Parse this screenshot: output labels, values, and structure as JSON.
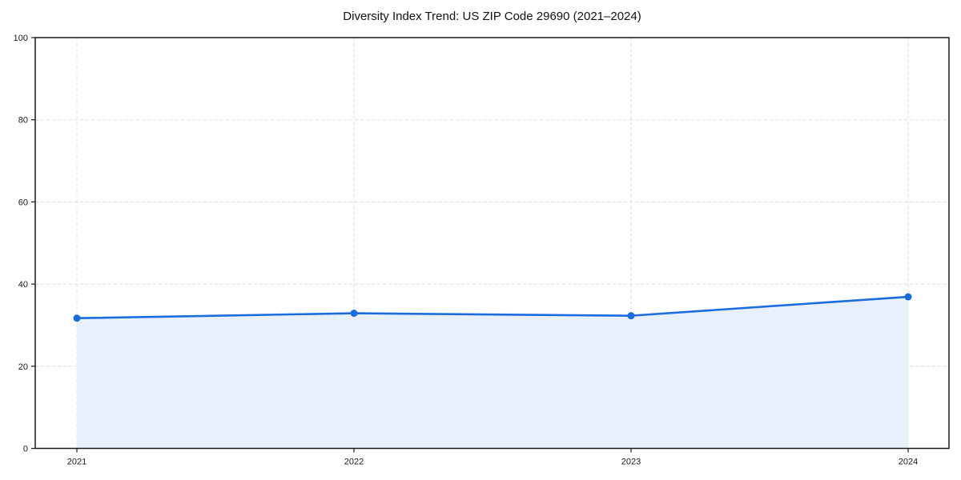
{
  "page": {
    "background": "#ffffff"
  },
  "chart_data": {
    "type": "area",
    "title": "Diversity Index Trend: US ZIP Code 29690 (2021–2024)",
    "categories": [
      "2021",
      "2022",
      "2023",
      "2024"
    ],
    "series": [
      {
        "name": "Diversity Index",
        "values": [
          31.7,
          32.9,
          32.3,
          36.9
        ]
      }
    ],
    "xlabel": "",
    "ylabel": "",
    "ylim": [
      0,
      100
    ],
    "y_ticks": [
      0,
      20,
      40,
      60,
      80,
      100
    ],
    "grid": "dashed-both-axes",
    "legend": "none",
    "marker": "circle",
    "colors": {
      "line": "#1b6cdf",
      "marker": "#1b6cdf",
      "fill": "#e8f0fc",
      "grid": "#dcdcdc",
      "axis": "#1a1a1a",
      "title": "#111111"
    }
  }
}
